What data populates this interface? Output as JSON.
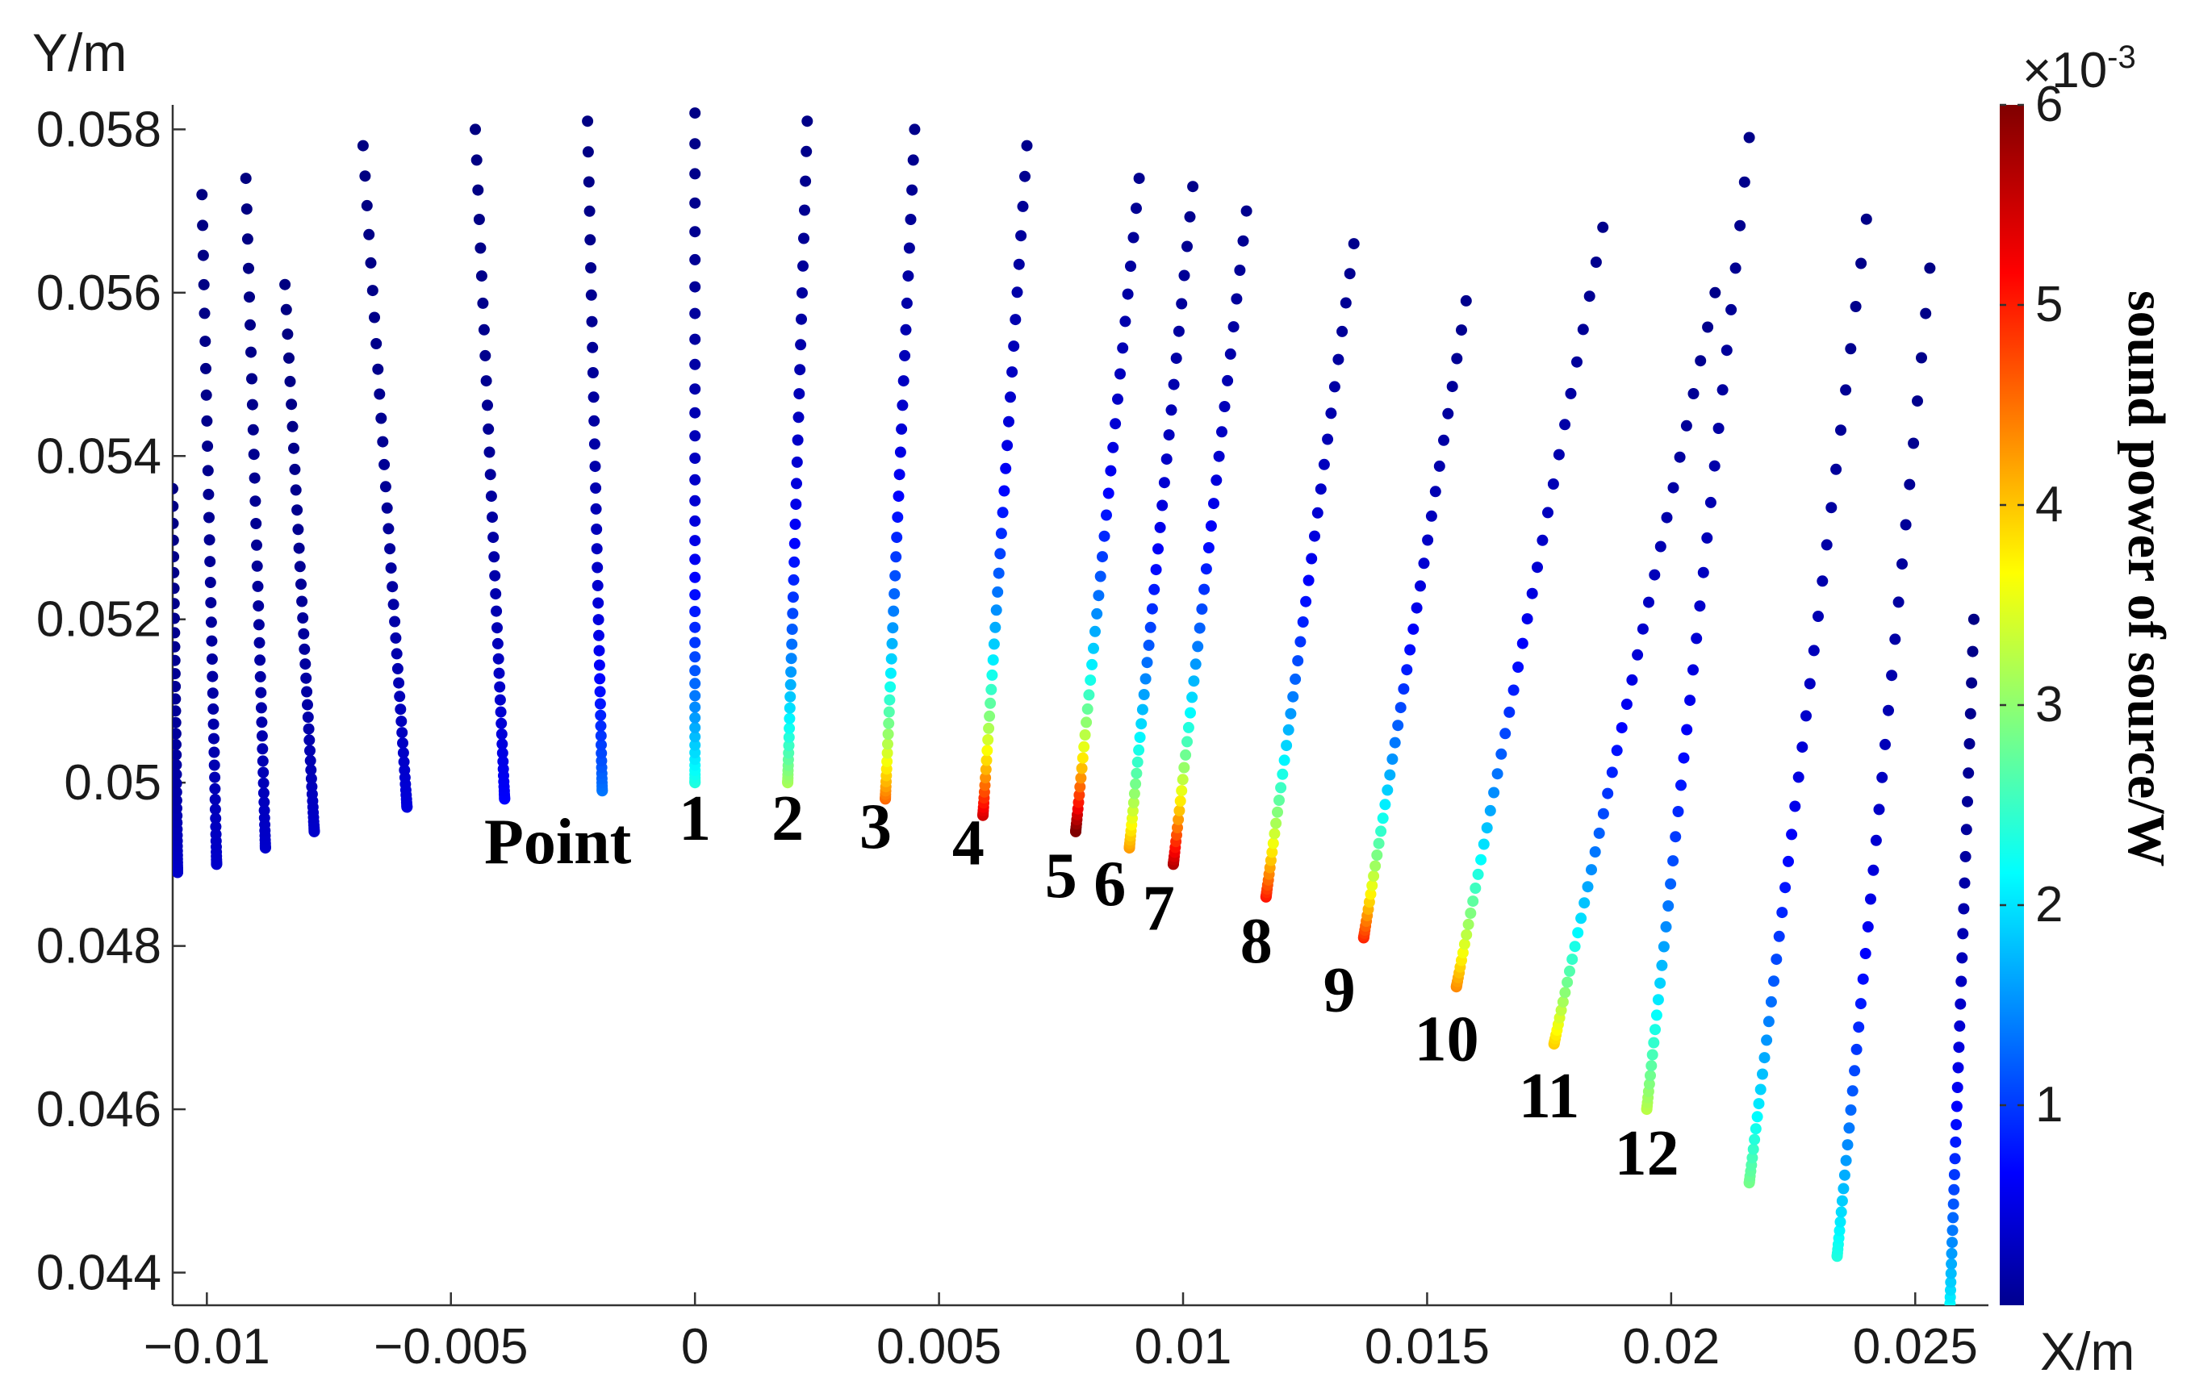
{
  "chart_data": {
    "type": "scatter",
    "xlabel": "X/m",
    "ylabel": "Y/m",
    "xlim": [
      -0.0107,
      0.0265
    ],
    "ylim": [
      0.0436,
      0.0583
    ],
    "xticks": [
      -0.01,
      -0.005,
      0,
      0.005,
      0.01,
      0.015,
      0.02,
      0.025
    ],
    "xtick_labels": [
      "−0.01",
      "−0.005",
      "0",
      "0.005",
      "0.01",
      "0.015",
      "0.02",
      "0.025"
    ],
    "yticks": [
      0.044,
      0.046,
      0.048,
      0.05,
      0.052,
      0.054,
      0.056,
      0.058
    ],
    "ytick_labels": [
      "0.044",
      "0.046",
      "0.048",
      "0.05",
      "0.052",
      "0.054",
      "0.056",
      "0.058"
    ],
    "colorbar": {
      "label": "sound power of source/W",
      "multiplier": "×10",
      "exponent": "-3",
      "range": [
        0,
        6
      ],
      "ticks": [
        1,
        2,
        3,
        4,
        5,
        6
      ],
      "tick_labels": [
        "1",
        "2",
        "3",
        "4",
        "5",
        "6"
      ],
      "colormap": "jet"
    },
    "point_annotation": "Point",
    "point_labels": [
      {
        "text": "1",
        "x": 0.0,
        "y": 0.0493
      },
      {
        "text": "2",
        "x": 0.0019,
        "y": 0.0493
      },
      {
        "text": "3",
        "x": 0.0037,
        "y": 0.0492
      },
      {
        "text": "4",
        "x": 0.0056,
        "y": 0.049
      },
      {
        "text": "5",
        "x": 0.0075,
        "y": 0.0486
      },
      {
        "text": "6",
        "x": 0.0085,
        "y": 0.0485
      },
      {
        "text": "7",
        "x": 0.0095,
        "y": 0.0482
      },
      {
        "text": "8",
        "x": 0.0115,
        "y": 0.0478
      },
      {
        "text": "9",
        "x": 0.0132,
        "y": 0.0472
      },
      {
        "text": "10",
        "x": 0.0154,
        "y": 0.0466
      },
      {
        "text": "11",
        "x": 0.0175,
        "y": 0.0459
      },
      {
        "text": "12",
        "x": 0.0195,
        "y": 0.0452
      }
    ],
    "series": [
      {
        "base": [
          -0.0106,
          0.0489
        ],
        "top": [
          -0.0107,
          0.0536
        ],
        "direction": -1,
        "max_power": 0.3
      },
      {
        "base": [
          -0.0098,
          0.049
        ],
        "top": [
          -0.0101,
          0.0572
        ],
        "direction": -1,
        "max_power": 0.3
      },
      {
        "base": [
          -0.0088,
          0.0492
        ],
        "top": [
          -0.0092,
          0.0574
        ],
        "direction": -1,
        "max_power": 0.3
      },
      {
        "base": [
          -0.0078,
          0.0494
        ],
        "top": [
          -0.0084,
          0.0561
        ],
        "direction": -1,
        "max_power": 0.3
      },
      {
        "base": [
          -0.0059,
          0.0497
        ],
        "top": [
          -0.0068,
          0.0578
        ],
        "direction": -1,
        "max_power": 0.4
      },
      {
        "base": [
          -0.0039,
          0.0498
        ],
        "top": [
          -0.0045,
          0.058
        ],
        "direction": -1,
        "max_power": 0.6
      },
      {
        "base": [
          -0.0019,
          0.0499
        ],
        "top": [
          -0.0022,
          0.0581
        ],
        "direction": -1,
        "max_power": 1.3
      },
      {
        "base": [
          0.0,
          0.05
        ],
        "top": [
          0.0,
          0.0582
        ],
        "direction": 0,
        "max_power": 2.3
      },
      {
        "base": [
          0.0019,
          0.05
        ],
        "top": [
          0.0023,
          0.0581
        ],
        "direction": 1,
        "max_power": 3.1
      },
      {
        "base": [
          0.0039,
          0.0498
        ],
        "top": [
          0.0045,
          0.058
        ],
        "direction": 1,
        "max_power": 4.5
      },
      {
        "base": [
          0.0059,
          0.0496
        ],
        "top": [
          0.0068,
          0.0578
        ],
        "direction": 1,
        "max_power": 5.4
      },
      {
        "base": [
          0.0078,
          0.0494
        ],
        "top": [
          0.0091,
          0.0574
        ],
        "direction": 1,
        "max_power": 6.0
      },
      {
        "base": [
          0.0089,
          0.0492
        ],
        "top": [
          0.0102,
          0.0573
        ],
        "direction": 1,
        "max_power": 4.2
      },
      {
        "base": [
          0.0098,
          0.049
        ],
        "top": [
          0.0113,
          0.057
        ],
        "direction": 1,
        "max_power": 5.6
      },
      {
        "base": [
          0.0117,
          0.0486
        ],
        "top": [
          0.0135,
          0.0566
        ],
        "direction": 1,
        "max_power": 5.0
      },
      {
        "base": [
          0.0137,
          0.0481
        ],
        "top": [
          0.0158,
          0.0559
        ],
        "direction": 1,
        "max_power": 4.9
      },
      {
        "base": [
          0.0156,
          0.0475
        ],
        "top": [
          0.0186,
          0.0568
        ],
        "direction": 1,
        "max_power": 4.3
      },
      {
        "base": [
          0.0176,
          0.0468
        ],
        "top": [
          0.0209,
          0.056
        ],
        "direction": 1,
        "max_power": 3.9
      },
      {
        "base": [
          0.0195,
          0.046
        ],
        "top": [
          0.0216,
          0.0579
        ],
        "direction": 1,
        "max_power": 3.2
      },
      {
        "base": [
          0.0216,
          0.0451
        ],
        "top": [
          0.024,
          0.0569
        ],
        "direction": 1,
        "max_power": 2.8
      },
      {
        "base": [
          0.0234,
          0.0442
        ],
        "top": [
          0.0253,
          0.0563
        ],
        "direction": 1,
        "max_power": 2.3
      },
      {
        "base": [
          0.0257,
          0.0434
        ],
        "top": [
          0.0262,
          0.052
        ],
        "direction": 1,
        "max_power": 2.3
      }
    ]
  }
}
